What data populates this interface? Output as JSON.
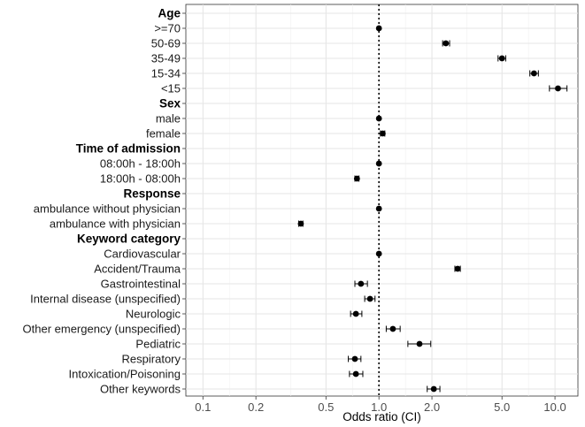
{
  "chart_data": {
    "type": "forest",
    "xlabel": "Odds ratio (CI)",
    "x_scale": "log",
    "xlim": [
      0.08,
      13.5
    ],
    "x_ticks": [
      {
        "value": 0.1,
        "label": "0.1"
      },
      {
        "value": 0.2,
        "label": "0.2"
      },
      {
        "value": 0.5,
        "label": "0.5"
      },
      {
        "value": 1.0,
        "label": "1.0"
      },
      {
        "value": 2.0,
        "label": "2.0"
      },
      {
        "value": 5.0,
        "label": "5.0"
      },
      {
        "value": 10.0,
        "label": "10.0"
      }
    ],
    "reference_line": 1.0,
    "grid": true,
    "rows": [
      {
        "label": "Age",
        "header": true
      },
      {
        "label": ">=70",
        "or": 1.0,
        "lo": 1.0,
        "hi": 1.0
      },
      {
        "label": "50-69",
        "or": 2.4,
        "lo": 2.3,
        "hi": 2.52
      },
      {
        "label": "35-49",
        "or": 5.0,
        "lo": 4.75,
        "hi": 5.25
      },
      {
        "label": "15-34",
        "or": 7.6,
        "lo": 7.2,
        "hi": 8.05
      },
      {
        "label": "<15",
        "or": 10.4,
        "lo": 9.3,
        "hi": 11.7
      },
      {
        "label": "Sex",
        "header": true
      },
      {
        "label": "male",
        "or": 1.0,
        "lo": 1.0,
        "hi": 1.0
      },
      {
        "label": "female",
        "or": 1.05,
        "lo": 1.02,
        "hi": 1.08
      },
      {
        "label": "Time of admission",
        "header": true
      },
      {
        "label": "08:00h - 18:00h",
        "or": 1.0,
        "lo": 1.0,
        "hi": 1.0
      },
      {
        "label": "18:00h - 08:00h",
        "or": 0.75,
        "lo": 0.73,
        "hi": 0.77
      },
      {
        "label": "Response",
        "header": true
      },
      {
        "label": "ambulance without physician",
        "or": 1.0,
        "lo": 1.0,
        "hi": 1.0
      },
      {
        "label": "ambulance with physician",
        "or": 0.36,
        "lo": 0.35,
        "hi": 0.37
      },
      {
        "label": "Keyword category",
        "header": true
      },
      {
        "label": "Cardiovascular",
        "or": 1.0,
        "lo": 1.0,
        "hi": 1.0
      },
      {
        "label": "Accident/Trauma",
        "or": 2.8,
        "lo": 2.7,
        "hi": 2.9
      },
      {
        "label": "Gastrointestinal",
        "or": 0.79,
        "lo": 0.73,
        "hi": 0.86
      },
      {
        "label": "Internal disease (unspecified)",
        "or": 0.89,
        "lo": 0.83,
        "hi": 0.95
      },
      {
        "label": "Neurologic",
        "or": 0.74,
        "lo": 0.69,
        "hi": 0.8
      },
      {
        "label": "Other emergency (unspecified)",
        "or": 1.2,
        "lo": 1.1,
        "hi": 1.32
      },
      {
        "label": "Pediatric",
        "or": 1.7,
        "lo": 1.46,
        "hi": 1.97
      },
      {
        "label": "Respiratory",
        "or": 0.73,
        "lo": 0.67,
        "hi": 0.79
      },
      {
        "label": "Intoxication/Poisoning",
        "or": 0.74,
        "lo": 0.68,
        "hi": 0.81
      },
      {
        "label": "Other keywords",
        "or": 2.05,
        "lo": 1.88,
        "hi": 2.22
      }
    ]
  }
}
